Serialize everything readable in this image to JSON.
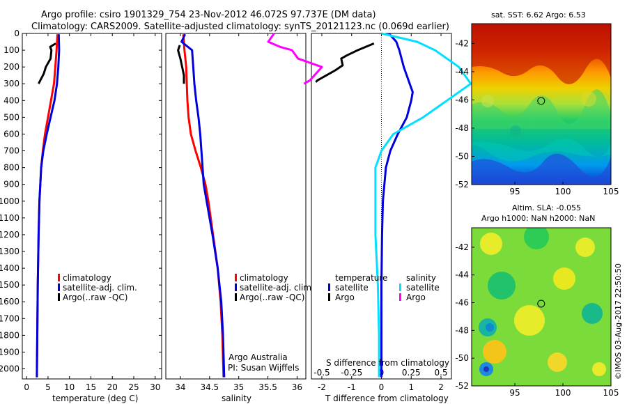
{
  "header": {
    "title_line1": "Argo profile: csiro 1901329_754 23-Nov-2012 46.072S 97.737E (DM data)",
    "title_line2": "Climatology: CARS2009. Satellite-adjusted climatology: synTS_20121123.nc (0.069d earlier)"
  },
  "colors": {
    "red": "#ff0000",
    "blue": "#0000dd",
    "black": "#000000",
    "cyan": "#00e0ff",
    "magenta": "#ff00ff"
  },
  "depth_ticks": [
    "0",
    "100",
    "200",
    "300",
    "400",
    "500",
    "600",
    "700",
    "800",
    "900",
    "1000",
    "1100",
    "1200",
    "1300",
    "1400",
    "1500",
    "1600",
    "1700",
    "1800",
    "1900",
    "2000"
  ],
  "chart_data": [
    {
      "id": "temperature",
      "type": "line",
      "xlabel": "temperature (deg C)",
      "xlim": [
        -1,
        31.5
      ],
      "ylim": [
        0,
        2060
      ],
      "y_reversed": true,
      "x_ticks": [
        "0",
        "5",
        "10",
        "15",
        "20",
        "25",
        "30"
      ],
      "legend": [
        "climatology",
        "satellite-adj. clim.",
        "Argo(..raw -QC)"
      ],
      "series": [
        {
          "name": "climatology",
          "color": "red",
          "y": [
            5,
            100,
            200,
            300,
            400,
            500,
            600,
            700,
            800,
            1000,
            1200,
            1500,
            1800,
            2050
          ],
          "x": [
            7.2,
            7.0,
            6.7,
            6.4,
            5.7,
            5.0,
            4.3,
            3.8,
            3.4,
            3.0,
            2.8,
            2.6,
            2.5,
            2.4
          ]
        },
        {
          "name": "satellite-adj. clim.",
          "color": "blue",
          "y": [
            5,
            100,
            200,
            300,
            400,
            500,
            600,
            700,
            800,
            1000,
            1200,
            1500,
            1800,
            2050
          ],
          "x": [
            7.5,
            7.6,
            7.4,
            7.1,
            6.5,
            5.6,
            4.7,
            3.9,
            3.4,
            3.0,
            2.8,
            2.6,
            2.5,
            2.4
          ]
        },
        {
          "name": "Argo(..raw -QC)",
          "color": "black",
          "y": [
            60,
            80,
            100,
            150,
            200,
            240,
            300
          ],
          "x": [
            6.8,
            5.5,
            5.8,
            5.6,
            4.5,
            4.0,
            2.8
          ]
        }
      ]
    },
    {
      "id": "salinity",
      "type": "line",
      "xlabel": "salinity",
      "xlim": [
        33.75,
        36.15
      ],
      "ylim": [
        0,
        2060
      ],
      "y_reversed": true,
      "x_ticks": [
        "34",
        "34.5",
        "35",
        "35.5",
        "36"
      ],
      "legend": [
        "climatology",
        "satellite-adj. clim."
      ],
      "legend_argo": "Argo(..raw -QC)",
      "annotation_line1": "Argo Australia",
      "annotation_line2": "PI: Susan Wijffels",
      "series": [
        {
          "name": "climatology",
          "color": "red",
          "y": [
            5,
            100,
            200,
            300,
            400,
            500,
            600,
            700,
            800,
            900,
            1000,
            1200,
            1400,
            1600,
            1800,
            2050
          ],
          "x": [
            34.05,
            34.07,
            34.1,
            34.11,
            34.12,
            34.14,
            34.18,
            34.26,
            34.35,
            34.43,
            34.48,
            34.56,
            34.64,
            34.69,
            34.72,
            34.74
          ]
        },
        {
          "name": "satellite-adj. clim.",
          "color": "blue",
          "y": [
            5,
            50,
            100,
            200,
            300,
            400,
            500,
            600,
            700,
            800,
            900,
            1000,
            1200,
            1400,
            1600,
            1800,
            2050
          ],
          "x": [
            34.08,
            34.02,
            34.2,
            34.22,
            34.24,
            34.27,
            34.31,
            34.34,
            34.36,
            34.38,
            34.4,
            34.45,
            34.55,
            34.64,
            34.7,
            34.73,
            34.75
          ]
        },
        {
          "name": "Argo(..raw -QC)",
          "color": "black",
          "y": [
            70,
            100,
            150,
            200,
            250,
            300
          ],
          "x": [
            33.99,
            33.96,
            34.0,
            34.03,
            34.06,
            34.06
          ]
        }
      ]
    },
    {
      "id": "difference",
      "type": "line",
      "xlabel": "T difference from climatology",
      "xlabel_top": "S difference from climatology",
      "xlim": [
        -2.35,
        2.35
      ],
      "ylim": [
        0,
        2060
      ],
      "y_reversed": true,
      "x_ticks": [
        "-2",
        "-1",
        "0",
        "1",
        "2"
      ],
      "x_ticks_s": [
        "-0.5",
        "-0.25",
        "0",
        "0.25",
        "0.5"
      ],
      "legend_temperature_title": "temperature",
      "legend_salinity_title": "salinity",
      "legend_temperature": [
        "satellite",
        "Argo"
      ],
      "legend_salinity": [
        "satellite",
        "Argo"
      ],
      "series": [
        {
          "name": "satellite",
          "group": "temperature",
          "color": "blue",
          "y": [
            0,
            50,
            100,
            200,
            300,
            350,
            400,
            500,
            600,
            700,
            800,
            1000,
            1200,
            1500,
            1800,
            2050
          ],
          "x": [
            0.25,
            0.5,
            0.6,
            0.75,
            0.95,
            1.05,
            1.0,
            0.85,
            0.55,
            0.3,
            0.15,
            0.05,
            0.02,
            0.0,
            0.0,
            0.0
          ]
        },
        {
          "name": "satellite",
          "group": "salinity",
          "color": "cyan",
          "y": [
            0,
            50,
            100,
            200,
            300,
            400,
            500,
            600,
            700,
            800,
            1000,
            1200,
            1500,
            1800,
            2050
          ],
          "x": [
            0.0,
            0.3,
            0.45,
            0.65,
            0.75,
            0.55,
            0.35,
            0.1,
            0.0,
            -0.05,
            -0.05,
            -0.05,
            -0.03,
            -0.02,
            -0.02
          ]
        },
        {
          "name": "Argo",
          "group": "temperature",
          "color": "black",
          "y": [
            60,
            100,
            130,
            150,
            190,
            220,
            250,
            280,
            290
          ],
          "x": [
            -0.25,
            -0.8,
            -1.15,
            -1.35,
            -1.3,
            -1.55,
            -1.85,
            -2.15,
            -2.2
          ]
        },
        {
          "name": "Argo",
          "group": "salinity",
          "color": "magenta",
          "y": [
            0,
            50,
            80,
            100,
            150,
            200,
            240,
            280,
            300
          ],
          "x": [
            -0.9,
            -0.95,
            -0.85,
            -0.75,
            -0.7,
            -0.5,
            -0.55,
            -0.6,
            -0.65
          ]
        }
      ]
    }
  ],
  "maps": [
    {
      "id": "sst-map",
      "title": "sat. SST: 6.62  Argo: 6.53",
      "x_ticks": [
        "95",
        "100",
        "105"
      ],
      "y_ticks": [
        "-42",
        "-44",
        "-46",
        "-48",
        "-50",
        "-52"
      ],
      "xlim": [
        90.5,
        105
      ],
      "ylim": [
        -52,
        -40.6
      ],
      "marker": {
        "lon": 97.737,
        "lat": -46.072
      }
    },
    {
      "id": "sla-map",
      "title_line1": "Altim. SLA: -0.055",
      "title_line2": "Argo h1000: NaN h2000: NaN",
      "x_ticks": [
        "95",
        "100",
        "105"
      ],
      "y_ticks": [
        "-42",
        "-44",
        "-46",
        "-48",
        "-50",
        "-52"
      ],
      "xlim": [
        90.5,
        105
      ],
      "ylim": [
        -52,
        -40.6
      ],
      "marker": {
        "lon": 97.737,
        "lat": -46.072
      }
    }
  ],
  "footer": {
    "credit": "©IMOS 03-Aug-2017 22:50:50"
  }
}
